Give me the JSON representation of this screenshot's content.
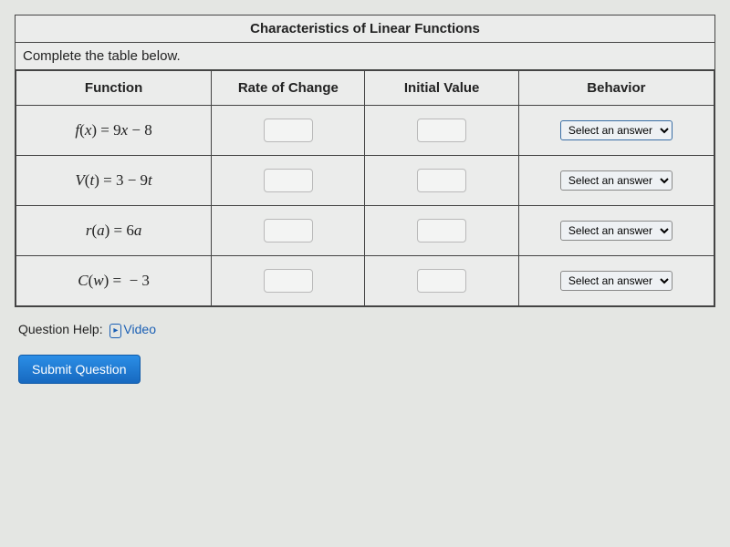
{
  "title": "Characteristics of Linear Functions",
  "instruction": "Complete the table below.",
  "headers": {
    "function": "Function",
    "rate": "Rate of Change",
    "initial": "Initial Value",
    "behavior": "Behavior"
  },
  "rows": [
    {
      "func_html": "<span class='mi'>f</span>(<span class='mi'>x</span>) = 9<span class='mi'>x</span> &minus; 8",
      "select_focused": true
    },
    {
      "func_html": "<span class='mi'>V</span>(<span class='mi'>t</span>) = 3 &minus; 9<span class='mi'>t</span>",
      "select_focused": false
    },
    {
      "func_html": "<span class='mi'>r</span>(<span class='mi'>a</span>) = 6<span class='mi'>a</span>",
      "select_focused": false
    },
    {
      "func_html": "<span class='mi'>C</span>(<span class='mi'>w</span>) = &nbsp;&minus; 3",
      "select_focused": false
    }
  ],
  "select_placeholder": "Select an answer",
  "help_label": "Question Help:",
  "video_label": "Video",
  "submit_label": "Submit Question",
  "colors": {
    "background": "#e4e6e3",
    "table_bg": "#ebeceb",
    "border": "#444444",
    "input_border": "#b9b9b9",
    "select_border_focused": "#3a6ea5",
    "select_border": "#8a8a8a",
    "link": "#1a5fb4",
    "button_bg_top": "#2b8ee6",
    "button_bg_bottom": "#1769c0",
    "button_text": "#ffffff"
  },
  "font_sizes": {
    "title": 15,
    "header": 15,
    "body": 14,
    "function": 17,
    "select": 12
  },
  "column_widths_pct": [
    28,
    22,
    22,
    28
  ]
}
